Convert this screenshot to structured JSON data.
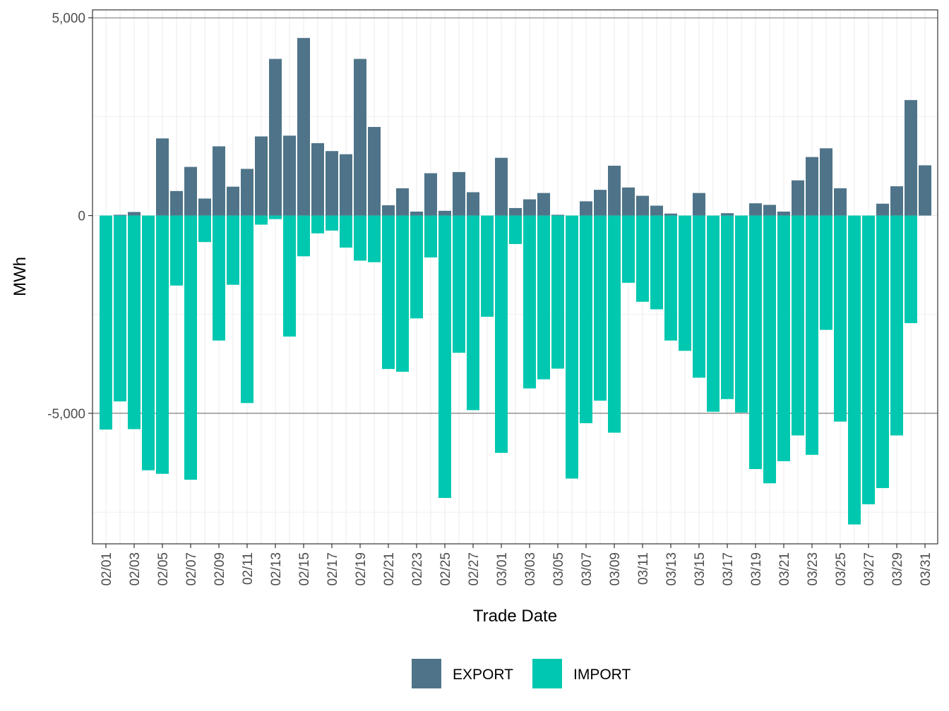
{
  "chart_data": {
    "type": "bar",
    "stacked": "diverging",
    "title": "",
    "xlabel": "Trade Date",
    "ylabel": "MWh",
    "ylim": [
      -8300,
      5200
    ],
    "yticks": [
      5000,
      0,
      -5000
    ],
    "ytick_labels": [
      "5,000",
      "0",
      "-5,000"
    ],
    "grid": true,
    "legend_position": "bottom",
    "colors": {
      "EXPORT": "#4f7489",
      "IMPORT": "#00c8b0",
      "grid": "#ebebeb",
      "axis": "#333333"
    },
    "categories": [
      "02/01",
      "02/02",
      "02/03",
      "02/04",
      "02/05",
      "02/06",
      "02/07",
      "02/08",
      "02/09",
      "02/10",
      "02/11",
      "02/12",
      "02/13",
      "02/14",
      "02/15",
      "02/16",
      "02/17",
      "02/18",
      "02/19",
      "02/20",
      "02/21",
      "02/22",
      "02/23",
      "02/24",
      "02/25",
      "02/26",
      "02/27",
      "02/28",
      "03/01",
      "03/02",
      "03/03",
      "03/04",
      "03/05",
      "03/06",
      "03/07",
      "03/08",
      "03/09",
      "03/10",
      "03/11",
      "03/12",
      "03/13",
      "03/14",
      "03/15",
      "03/16",
      "03/17",
      "03/18",
      "03/19",
      "03/20",
      "03/21",
      "03/22",
      "03/23",
      "03/24",
      "03/25",
      "03/26",
      "03/27",
      "03/28",
      "03/29",
      "03/30",
      "03/31"
    ],
    "tick_labels": [
      "02/01",
      "02/03",
      "02/05",
      "02/07",
      "02/09",
      "02/11",
      "02/13",
      "02/15",
      "02/17",
      "02/19",
      "02/21",
      "02/23",
      "02/25",
      "02/27",
      "03/01",
      "03/03",
      "03/05",
      "03/07",
      "03/09",
      "03/11",
      "03/13",
      "03/15",
      "03/17",
      "03/19",
      "03/21",
      "03/23",
      "03/25",
      "03/27",
      "03/29",
      "03/31"
    ],
    "series": [
      {
        "name": "EXPORT",
        "values": [
          0,
          20,
          90,
          0,
          1950,
          620,
          1230,
          430,
          1750,
          730,
          1180,
          2000,
          3960,
          2020,
          4490,
          1830,
          1630,
          1550,
          3960,
          2240,
          260,
          690,
          100,
          1070,
          120,
          1100,
          590,
          0,
          1460,
          190,
          410,
          570,
          20,
          0,
          360,
          650,
          1260,
          710,
          500,
          250,
          50,
          0,
          570,
          0,
          60,
          0,
          310,
          270,
          100,
          890,
          1480,
          1700,
          690,
          0,
          0,
          300,
          740,
          2920,
          1270
        ]
      },
      {
        "name": "IMPORT",
        "values": [
          -5410,
          -4700,
          -5400,
          -6440,
          -6530,
          -1770,
          -6680,
          -670,
          -3160,
          -1750,
          -4740,
          -230,
          -90,
          -3060,
          -1030,
          -450,
          -380,
          -810,
          -1140,
          -1180,
          -3880,
          -3950,
          -2600,
          -1060,
          -7140,
          -3470,
          -4920,
          -2560,
          -6000,
          -720,
          -4370,
          -4140,
          -3870,
          -6650,
          -5250,
          -4680,
          -5490,
          -1700,
          -2180,
          -2370,
          -3160,
          -3420,
          -4100,
          -4960,
          -4640,
          -4980,
          -6410,
          -6770,
          -6210,
          -5560,
          -6050,
          -2890,
          -5210,
          -7810,
          -7300,
          -6890,
          -5560,
          -2720,
          0
        ]
      }
    ]
  }
}
